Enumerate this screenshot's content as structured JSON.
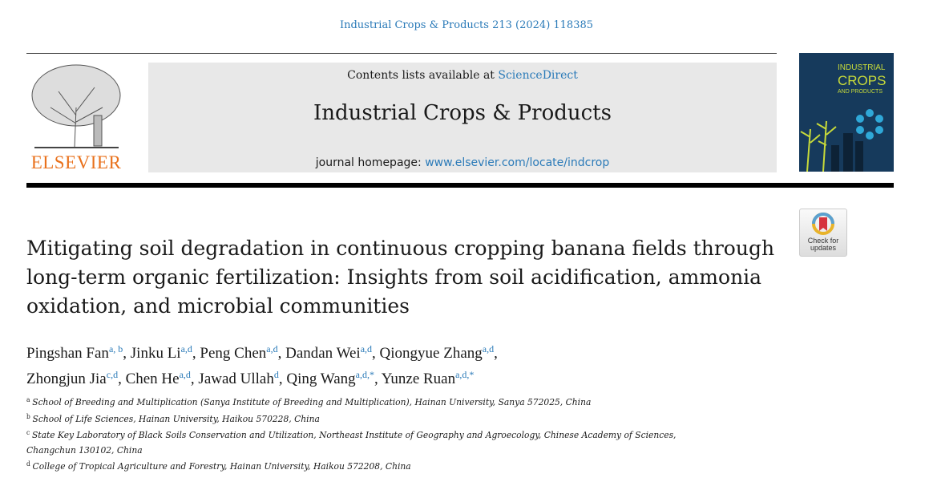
{
  "citation": "Industrial Crops & Products 213 (2024) 118385",
  "publisher_logo": "ELSEVIER",
  "masthead": {
    "contents_prefix": "Contents lists available at ",
    "contents_link": "ScienceDirect",
    "journal_title": "Industrial Crops & Products",
    "homepage_prefix": "journal homepage: ",
    "homepage_link": "www.elsevier.com/locate/indcrop"
  },
  "cover": {
    "line1": "INDUSTRIAL",
    "line2": "CROPS",
    "line3": "AND PRODUCTS"
  },
  "check_updates": {
    "line1": "Check for",
    "line2": "updates"
  },
  "title": "Mitigating soil degradation in continuous cropping banana fields through long-term organic fertilization: Insights from soil acidification, ammonia oxidation, and microbial communities",
  "authors": [
    {
      "name": "Pingshan Fan",
      "aff": "a, b"
    },
    {
      "name": "Jinku Li",
      "aff": "a,d"
    },
    {
      "name": "Peng Chen",
      "aff": "a,d"
    },
    {
      "name": "Dandan Wei",
      "aff": "a,d"
    },
    {
      "name": "Qiongyue Zhang",
      "aff": "a,d"
    },
    {
      "name": "Zhongjun Jia",
      "aff": "c,d"
    },
    {
      "name": "Chen He",
      "aff": "a,d"
    },
    {
      "name": "Jawad Ullah",
      "aff": "d"
    },
    {
      "name": "Qing Wang",
      "aff": "a,d,*"
    },
    {
      "name": "Yunze Ruan",
      "aff": "a,d,*"
    }
  ],
  "affiliations": [
    {
      "key": "a",
      "text": "School of Breeding and Multiplication (Sanya Institute of Breeding and Multiplication), Hainan University, Sanya 572025, China"
    },
    {
      "key": "b",
      "text": "School of Life Sciences, Hainan University, Haikou 570228, China"
    },
    {
      "key": "c",
      "text": "State Key Laboratory of Black Soils Conservation and Utilization, Northeast Institute of Geography and Agroecology, Chinese Academy of Sciences, Changchun 130102, China"
    },
    {
      "key": "d",
      "text": "College of Tropical Agriculture and Forestry, Hainan University, Haikou 572208, China"
    }
  ],
  "colors": {
    "link": "#2a7ab8",
    "elsevier_orange": "#e9711c",
    "masthead_bg": "#e8e8e8"
  }
}
